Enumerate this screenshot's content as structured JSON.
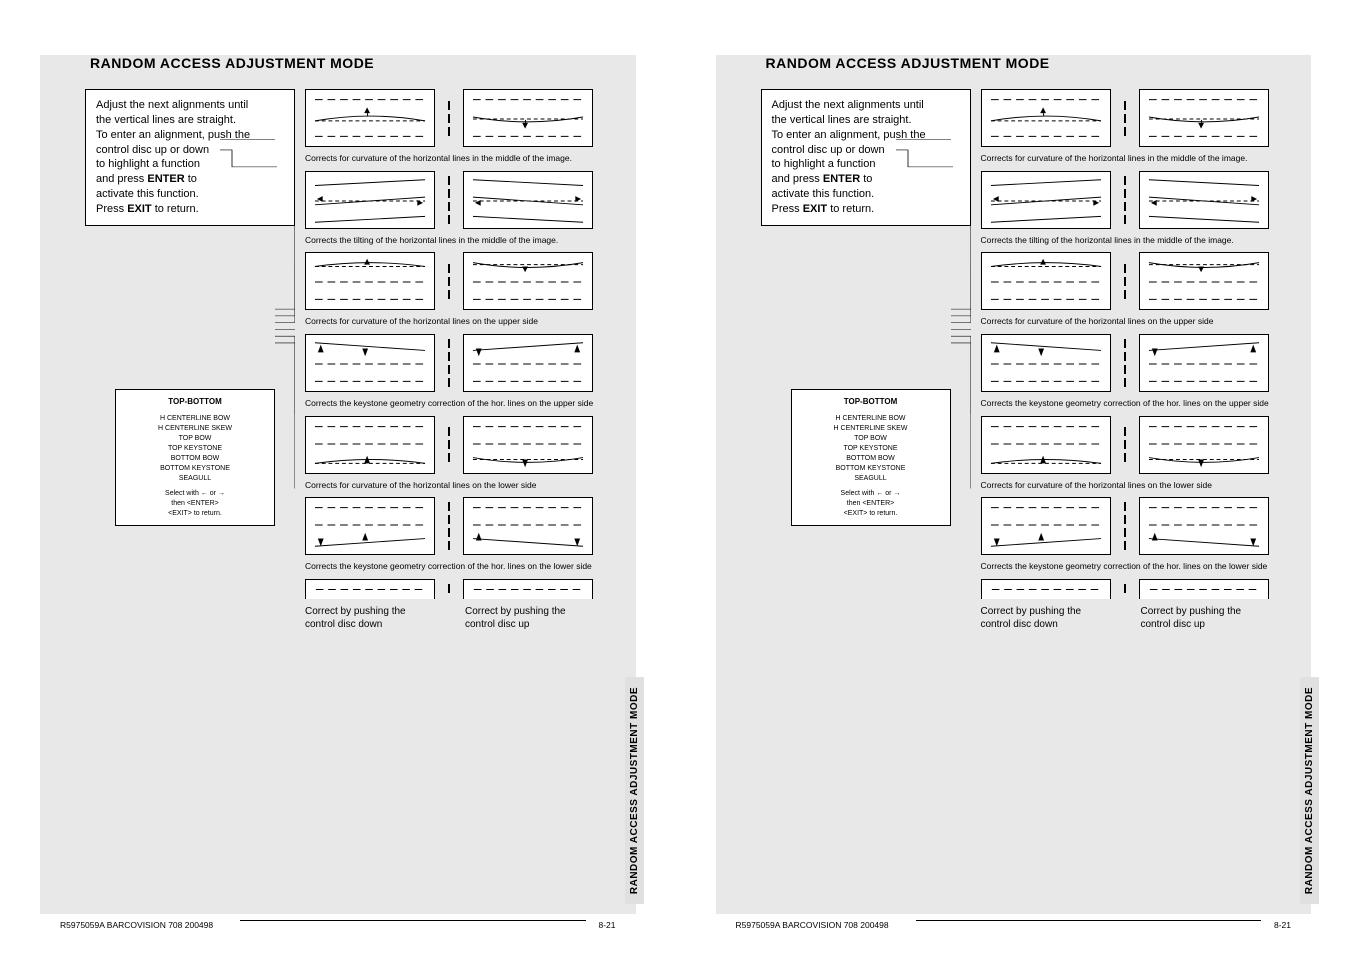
{
  "page_title": "RANDOM ACCESS ADJUSTMENT MODE",
  "side_tab": "RANDOM ACCESS ADJUSTMENT MODE",
  "intro": {
    "line1": "Adjust the next alignments until",
    "line2": "the vertical lines are straight.",
    "line3": "To enter an alignment, push the",
    "line4": "control disc up or down",
    "line5": "to highlight a function",
    "line6_a": "and press ",
    "line6_b": "ENTER",
    "line6_c": " to",
    "line7": "activate this function.",
    "line8_a": "Press ",
    "line8_b": "EXIT",
    "line8_c": " to return."
  },
  "menu": {
    "title": "TOP-BOTTOM",
    "i1": "H CENTERLINE BOW",
    "i2": "H CENTERLINE SKEW",
    "i3": "TOP BOW",
    "i4": "TOP KEYSTONE",
    "i5": "BOTTOM BOW",
    "i6": "BOTTOM KEYSTONE",
    "i7": "SEAGULL",
    "s1": "Select with  ←  or  →",
    "s2": "then  <ENTER>",
    "s3": "<EXIT>  to  return."
  },
  "captions": {
    "c1": "Corrects for curvature of the horizontal lines in the middle of the image.",
    "c2": "Corrects the tilting of the horizontal lines in the middle of the image.",
    "c3": "Corrects for curvature of the horizontal lines on the upper side",
    "c4": "Corrects the keystone geometry correction of the hor. lines on the upper side",
    "c5": "Corrects for curvature of the horizontal lines on the lower side",
    "c6": "Corrects the keystone geometry correction of the hor. lines on the lower side"
  },
  "footer_instructions": {
    "left": "Correct by pushing the control disc down",
    "right": "Correct by pushing the control disc up"
  },
  "doc_footer": {
    "ref": "R5975059A BARCOVISION 708 200498",
    "page": "8-21"
  },
  "colors": {
    "bg": "#e8e8e8",
    "line": "#000000"
  }
}
